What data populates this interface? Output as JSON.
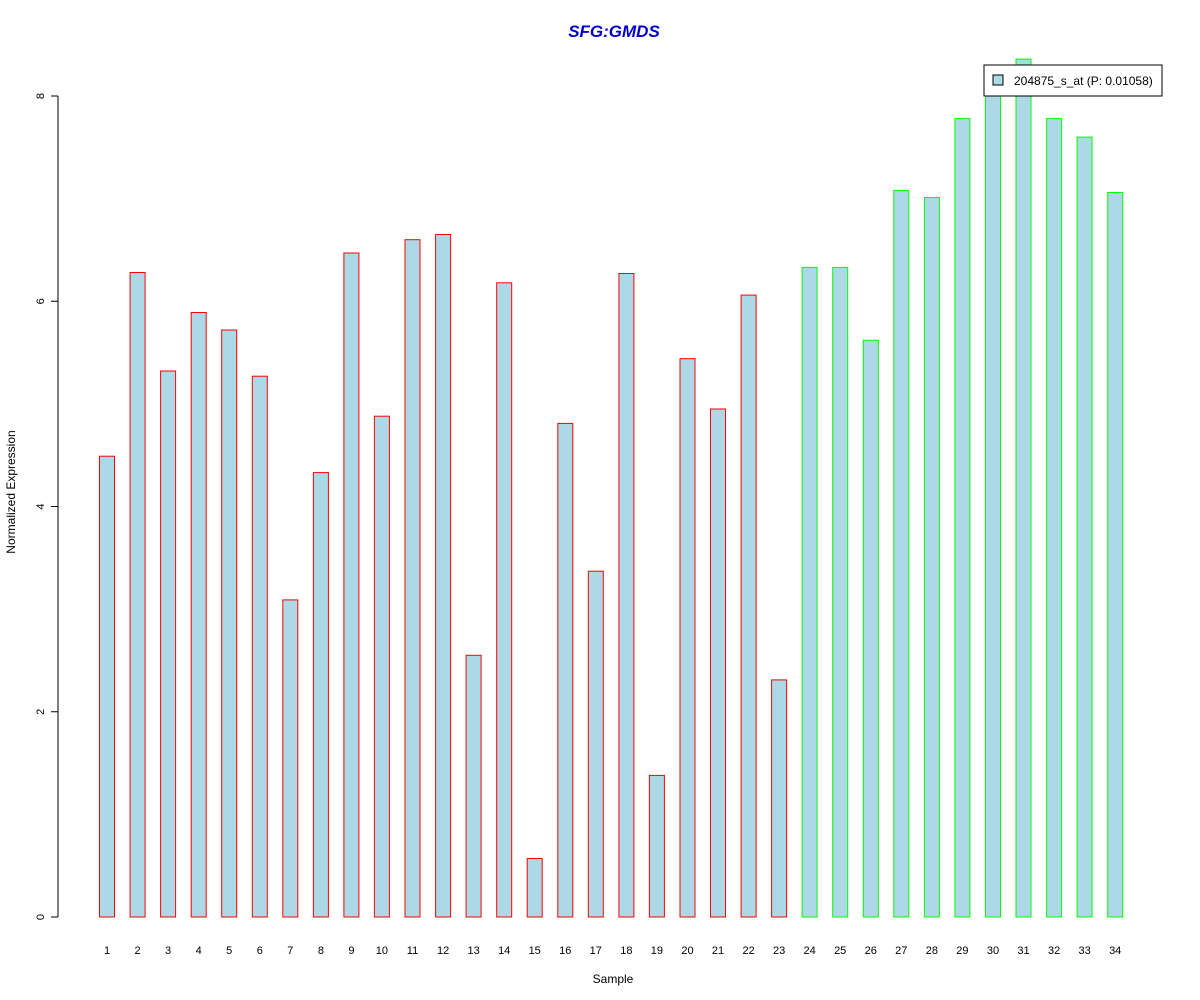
{
  "chart_data": {
    "type": "bar",
    "title": "SFG:GMDS",
    "xlabel": "Sample",
    "ylabel": "Normalized Expression",
    "categories": [
      "1",
      "2",
      "3",
      "4",
      "5",
      "6",
      "7",
      "8",
      "9",
      "10",
      "11",
      "12",
      "13",
      "14",
      "15",
      "16",
      "17",
      "18",
      "19",
      "20",
      "21",
      "22",
      "23",
      "24",
      "25",
      "26",
      "27",
      "28",
      "29",
      "30",
      "31",
      "32",
      "33",
      "34"
    ],
    "values": [
      4.49,
      6.28,
      5.32,
      5.89,
      5.72,
      5.27,
      3.09,
      4.33,
      6.47,
      4.88,
      6.6,
      6.65,
      2.55,
      6.18,
      0.57,
      4.81,
      3.37,
      6.27,
      1.38,
      5.44,
      4.95,
      6.06,
      2.31,
      6.33,
      6.33,
      5.62,
      7.08,
      7.01,
      7.78,
      8.07,
      8.36,
      7.78,
      7.6,
      7.06
    ],
    "groups": [
      "A",
      "A",
      "A",
      "A",
      "A",
      "A",
      "A",
      "A",
      "A",
      "A",
      "A",
      "A",
      "A",
      "A",
      "A",
      "A",
      "A",
      "A",
      "A",
      "A",
      "A",
      "A",
      "A",
      "B",
      "B",
      "B",
      "B",
      "B",
      "B",
      "B",
      "B",
      "B",
      "B",
      "B"
    ],
    "group_colors": {
      "A": "#ff0000",
      "B": "#00ff00"
    },
    "fill_color": "#add8e6",
    "title_color": "#0000cd",
    "ylim": [
      0,
      8
    ],
    "yticks": [
      "0",
      "2",
      "4",
      "6",
      "8"
    ],
    "grid": false,
    "legend": {
      "label": "204875_s_at (P: 0.01058)",
      "position": "top-right",
      "swatch_color": "#add8e6"
    }
  }
}
